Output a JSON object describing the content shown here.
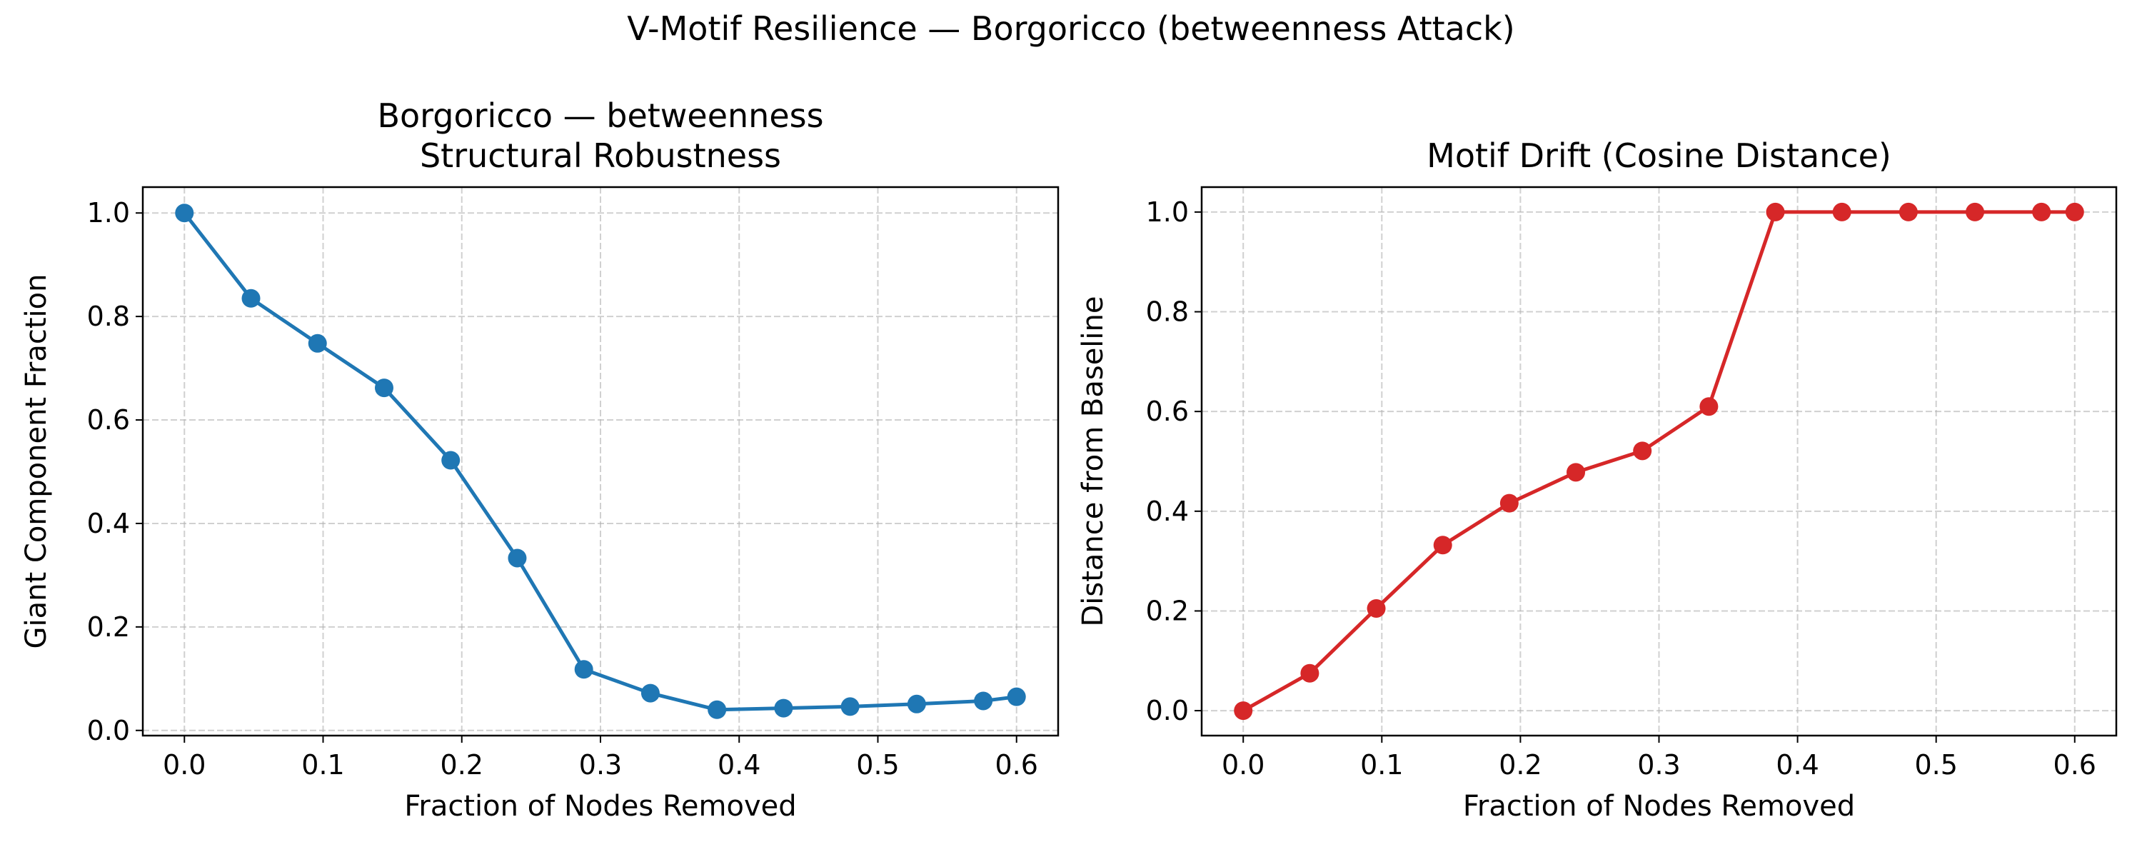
{
  "figure": {
    "suptitle": "V-Motif Resilience — Borgoricco (betweenness Attack)"
  },
  "chart_data": [
    {
      "type": "line",
      "title_lines": [
        "Borgoricco — betweenness",
        "Structural Robustness"
      ],
      "xlabel": "Fraction of Nodes Removed",
      "ylabel": "Giant Component Fraction",
      "xlim": [
        -0.03,
        0.63
      ],
      "ylim": [
        -0.01,
        1.05
      ],
      "xticks": [
        0.0,
        0.1,
        0.2,
        0.3,
        0.4,
        0.5,
        0.6
      ],
      "xtick_labels": [
        "0.0",
        "0.1",
        "0.2",
        "0.3",
        "0.4",
        "0.5",
        "0.6"
      ],
      "yticks": [
        0.0,
        0.2,
        0.4,
        0.6,
        0.8,
        1.0
      ],
      "ytick_labels": [
        "0.0",
        "0.2",
        "0.4",
        "0.6",
        "0.8",
        "1.0"
      ],
      "grid": true,
      "color": "#1f77b4",
      "series": [
        {
          "x": [
            0.0,
            0.048,
            0.096,
            0.144,
            0.192,
            0.24,
            0.288,
            0.336,
            0.384,
            0.432,
            0.48,
            0.528,
            0.576,
            0.6
          ],
          "values": [
            1.0,
            0.835,
            0.748,
            0.662,
            0.522,
            0.333,
            0.118,
            0.072,
            0.04,
            0.043,
            0.046,
            0.051,
            0.057,
            0.065
          ]
        }
      ]
    },
    {
      "type": "line",
      "title_lines": [
        "Motif Drift (Cosine Distance)"
      ],
      "xlabel": "Fraction of Nodes Removed",
      "ylabel": "Distance from Baseline",
      "xlim": [
        -0.03,
        0.63
      ],
      "ylim": [
        -0.05,
        1.05
      ],
      "xticks": [
        0.0,
        0.1,
        0.2,
        0.3,
        0.4,
        0.5,
        0.6
      ],
      "xtick_labels": [
        "0.0",
        "0.1",
        "0.2",
        "0.3",
        "0.4",
        "0.5",
        "0.6"
      ],
      "yticks": [
        0.0,
        0.2,
        0.4,
        0.6,
        0.8,
        1.0
      ],
      "ytick_labels": [
        "0.0",
        "0.2",
        "0.4",
        "0.6",
        "0.8",
        "1.0"
      ],
      "grid": true,
      "color": "#d62728",
      "series": [
        {
          "x": [
            0.0,
            0.048,
            0.096,
            0.144,
            0.192,
            0.24,
            0.288,
            0.336,
            0.384,
            0.432,
            0.48,
            0.528,
            0.576,
            0.6
          ],
          "values": [
            0.0,
            0.075,
            0.205,
            0.332,
            0.416,
            0.478,
            0.521,
            0.61,
            1.0,
            1.0,
            1.0,
            1.0,
            1.0,
            1.0
          ]
        }
      ]
    }
  ]
}
